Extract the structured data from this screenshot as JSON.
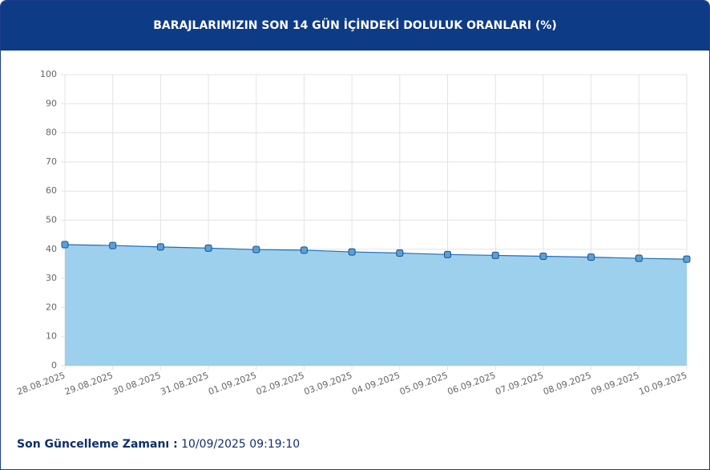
{
  "chart_data": {
    "type": "line",
    "title": "BARAJLARIMIZIN SON 14 GÜN İÇİNDEKİ DOLULUK ORANLARI (%)",
    "categories": [
      "28.08.2025",
      "29.08.2025",
      "30.08.2025",
      "31.08.2025",
      "01.09.2025",
      "02.09.2025",
      "03.09.2025",
      "04.09.2025",
      "05.09.2025",
      "06.09.2025",
      "07.09.2025",
      "08.09.2025",
      "09.09.2025",
      "10.09.2025"
    ],
    "series": [
      {
        "color": "#1f6fb8",
        "fill": "#9dd0ec",
        "values": [
          41.6,
          41.3,
          40.8,
          40.4,
          39.9,
          39.7,
          39.1,
          38.7,
          38.2,
          37.9,
          37.6,
          37.3,
          36.9,
          36.6
        ]
      }
    ],
    "ylim": [
      0,
      100
    ],
    "yticks": [
      0,
      10,
      20,
      30,
      40,
      50,
      60,
      70,
      80,
      90,
      100
    ],
    "grid": true,
    "area": true
  },
  "footer": {
    "label": "Son Güncelleme Zamanı :",
    "value": "10/09/2025 09:19:10"
  }
}
